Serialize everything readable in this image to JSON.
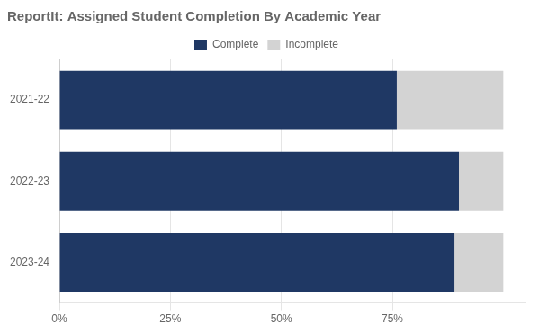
{
  "chart_data": {
    "type": "bar",
    "title": "ReportIt: Assigned Student Completion By Academic Year",
    "orientation": "horizontal",
    "stacked": true,
    "categories": [
      "2021-22",
      "2022-23",
      "2023-24"
    ],
    "series": [
      {
        "name": "Complete",
        "color": "#1F3864",
        "values": [
          0.76,
          0.9,
          0.89
        ]
      },
      {
        "name": "Incomplete",
        "color": "#D3D3D3",
        "values": [
          0.24,
          0.1,
          0.11
        ]
      }
    ],
    "xlim": [
      0,
      1.05
    ],
    "xticks": [
      {
        "value": 0,
        "label": "0%"
      },
      {
        "value": 0.25,
        "label": "25%"
      },
      {
        "value": 0.5,
        "label": "50%"
      },
      {
        "value": 0.75,
        "label": "75%"
      }
    ],
    "grid": true,
    "legend": "top"
  }
}
